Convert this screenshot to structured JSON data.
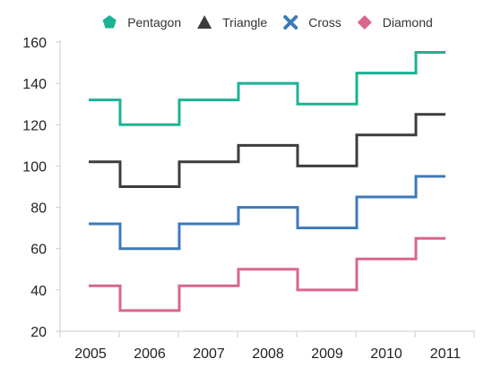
{
  "chart_data": {
    "type": "line",
    "step": "center",
    "title": "",
    "xlabel": "",
    "ylabel": "",
    "x": [
      2005,
      2006,
      2007,
      2008,
      2009,
      2010,
      2011
    ],
    "x_tick_labels": [
      "2005",
      "2006",
      "2007",
      "2008",
      "2009",
      "2010",
      "2011"
    ],
    "ylim": [
      20,
      160
    ],
    "y_ticks": [
      20,
      40,
      60,
      80,
      100,
      120,
      140,
      160
    ],
    "grid": false,
    "legend_position": "top",
    "series": [
      {
        "name": "Pentagon",
        "marker": "pentagon-icon",
        "color": "#1ab394",
        "values": [
          132,
          120,
          132,
          140,
          130,
          145,
          155
        ]
      },
      {
        "name": "Triangle",
        "marker": "triangle-icon",
        "color": "#3d3d3d",
        "values": [
          102,
          90,
          102,
          110,
          100,
          115,
          125
        ]
      },
      {
        "name": "Cross",
        "marker": "cross-icon",
        "color": "#3d7ab8",
        "values": [
          72,
          60,
          72,
          80,
          70,
          85,
          95
        ]
      },
      {
        "name": "Diamond",
        "marker": "diamond-icon",
        "color": "#d9658f",
        "values": [
          42,
          30,
          42,
          50,
          40,
          55,
          65
        ]
      }
    ]
  }
}
